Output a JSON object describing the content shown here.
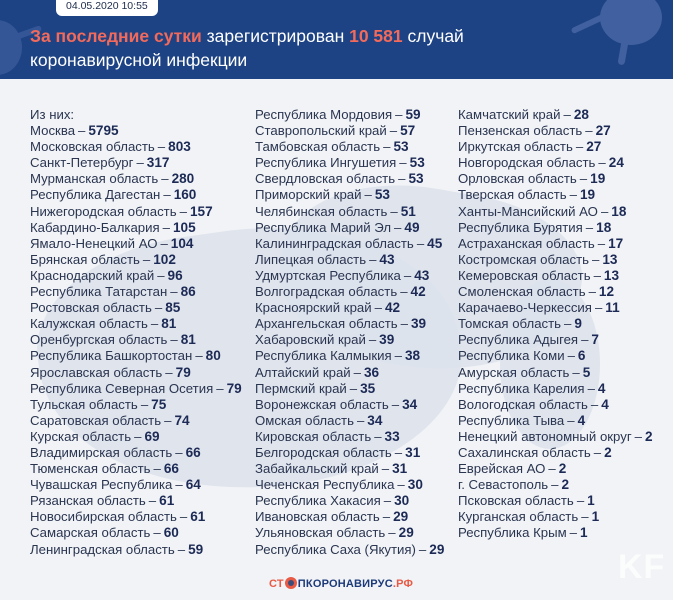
{
  "header": {
    "date": "04.05.2020 10:55",
    "title_accent": "За последние сутки",
    "title_middle": " зарегистрирован ",
    "title_number": "10 581",
    "title_end": " случай",
    "title_line2": "коронавирусной инфекции"
  },
  "intro": "Из них:",
  "dash": "–",
  "columns": [
    [
      {
        "region": "Москва",
        "count": "5795"
      },
      {
        "region": "Московская область",
        "count": "803"
      },
      {
        "region": "Санкт-Петербург",
        "count": "317"
      },
      {
        "region": "Мурманская область",
        "count": "280"
      },
      {
        "region": "Республика Дагестан",
        "count": "160"
      },
      {
        "region": "Нижегородская область",
        "count": "157"
      },
      {
        "region": "Кабардино-Балкария",
        "count": "105"
      },
      {
        "region": "Ямало-Ненецкий АО",
        "count": "104"
      },
      {
        "region": "Брянская область",
        "count": "102"
      },
      {
        "region": "Краснодарский край",
        "count": "96"
      },
      {
        "region": "Республика Татарстан",
        "count": "86"
      },
      {
        "region": "Ростовская область",
        "count": "85"
      },
      {
        "region": "Калужская область",
        "count": "81"
      },
      {
        "region": "Оренбургская область",
        "count": "81"
      },
      {
        "region": "Республика Башкортостан",
        "count": "80"
      },
      {
        "region": "Ярославская область",
        "count": "79"
      },
      {
        "region": "Республика Северная Осетия",
        "count": "79"
      },
      {
        "region": "Тульская область",
        "count": "75"
      },
      {
        "region": "Саратовская область",
        "count": "74"
      },
      {
        "region": "Курская область",
        "count": "69"
      },
      {
        "region": "Владимирская область",
        "count": "66"
      },
      {
        "region": "Тюменская область",
        "count": "66"
      },
      {
        "region": "Чувашская Республика",
        "count": "64"
      },
      {
        "region": "Рязанская область",
        "count": "61"
      },
      {
        "region": "Новосибирская область",
        "count": "61"
      },
      {
        "region": "Самарская область",
        "count": "60"
      },
      {
        "region": "Ленинградская область",
        "count": "59"
      }
    ],
    [
      {
        "region": "Республика Мордовия",
        "count": "59"
      },
      {
        "region": "Ставропольский край",
        "count": "57"
      },
      {
        "region": "Тамбовская область",
        "count": "53"
      },
      {
        "region": "Республика Ингушетия",
        "count": "53"
      },
      {
        "region": "Свердловская область",
        "count": "53"
      },
      {
        "region": "Приморский край",
        "count": "53"
      },
      {
        "region": "Челябинская область",
        "count": "51"
      },
      {
        "region": "Республика Марий Эл",
        "count": "49"
      },
      {
        "region": "Калининградская область",
        "count": "45"
      },
      {
        "region": "Липецкая область",
        "count": "43"
      },
      {
        "region": "Удмуртская Республика",
        "count": "43"
      },
      {
        "region": "Волгоградская область",
        "count": "42"
      },
      {
        "region": "Красноярский край",
        "count": "42"
      },
      {
        "region": "Архангельская область",
        "count": "39"
      },
      {
        "region": "Хабаровский край",
        "count": "39"
      },
      {
        "region": "Республика Калмыкия",
        "count": "38"
      },
      {
        "region": "Алтайский край",
        "count": "36"
      },
      {
        "region": "Пермский край",
        "count": "35"
      },
      {
        "region": "Воронежская область",
        "count": "34"
      },
      {
        "region": "Омская область",
        "count": "34"
      },
      {
        "region": "Кировская область",
        "count": "33"
      },
      {
        "region": "Белгородская область",
        "count": "31"
      },
      {
        "region": "Забайкальский край",
        "count": "31"
      },
      {
        "region": "Чеченская Республика",
        "count": "30"
      },
      {
        "region": "Республика Хакасия",
        "count": "30"
      },
      {
        "region": "Ивановская область",
        "count": "29"
      },
      {
        "region": "Ульяновская область",
        "count": "29"
      },
      {
        "region": "Республика Саха (Якутия)",
        "count": "29"
      }
    ],
    [
      {
        "region": "Камчатский край",
        "count": "28"
      },
      {
        "region": "Пензенская область",
        "count": "27"
      },
      {
        "region": "Иркутская область",
        "count": "27"
      },
      {
        "region": "Новгородская область",
        "count": "24"
      },
      {
        "region": "Орловская область",
        "count": "19"
      },
      {
        "region": "Тверская область",
        "count": "19"
      },
      {
        "region": "Ханты-Мансийский АО",
        "count": "18"
      },
      {
        "region": "Республика Бурятия",
        "count": "18"
      },
      {
        "region": "Астраханская область",
        "count": "17"
      },
      {
        "region": "Костромская область",
        "count": "13"
      },
      {
        "region": "Кемеровская область",
        "count": "13"
      },
      {
        "region": "Смоленская область",
        "count": "12"
      },
      {
        "region": "Карачаево-Черкессия",
        "count": "11"
      },
      {
        "region": "Томская область",
        "count": "9"
      },
      {
        "region": "Республика Адыгея",
        "count": "7"
      },
      {
        "region": "Республика Коми",
        "count": "6"
      },
      {
        "region": "Амурская область",
        "count": "5"
      },
      {
        "region": "Республика Карелия",
        "count": "4"
      },
      {
        "region": "Вологодская область",
        "count": "4"
      },
      {
        "region": "Республика Тыва",
        "count": "4"
      },
      {
        "region": "Ненецкий автономный округ",
        "count": "2"
      },
      {
        "region": "Сахалинская область",
        "count": "2"
      },
      {
        "region": "Еврейская АО",
        "count": "2"
      },
      {
        "region": "г. Севастополь",
        "count": "2"
      },
      {
        "region": "Псковская область",
        "count": "1"
      },
      {
        "region": "Курганская область",
        "count": "1"
      },
      {
        "region": "Республика Крым",
        "count": "1"
      }
    ]
  ],
  "footer": {
    "logo_part1": "СТ",
    "logo_part2": "ПКОРОНАВИРУС",
    "logo_part3": ".РФ",
    "watermark": "KF"
  },
  "colors": {
    "header_bg": "#1d4384",
    "accent": "#f26a5b",
    "number": "#1c2a55",
    "background": "#f1f3f6"
  }
}
